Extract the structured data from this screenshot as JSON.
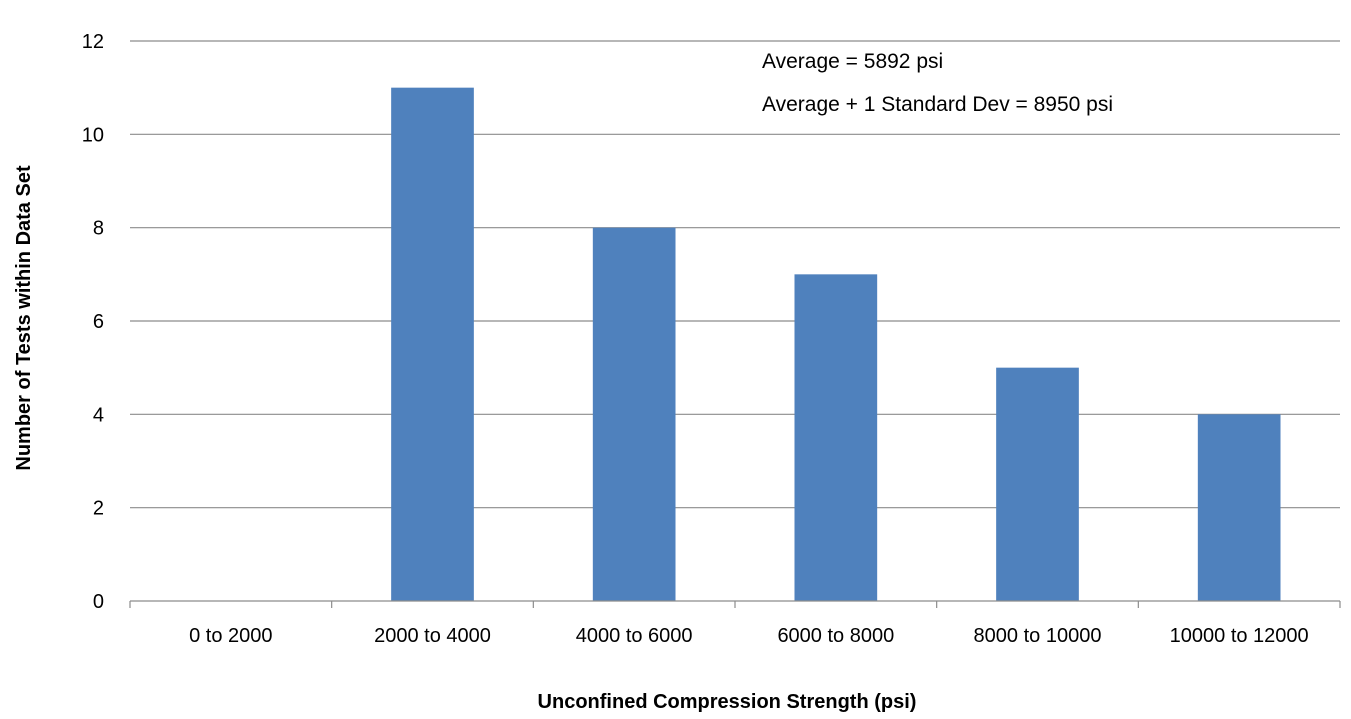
{
  "chart_data": {
    "type": "bar",
    "title": "",
    "xlabel": "Unconfined Compression Strength (psi)",
    "ylabel": "Number of Tests within Data Set",
    "categories": [
      "0 to 2000",
      "2000 to 4000",
      "4000 to 6000",
      "6000 to 8000",
      "8000 to 10000",
      "10000 to 12000"
    ],
    "values": [
      0,
      11,
      8,
      7,
      5,
      4
    ],
    "ylim": [
      0,
      12
    ],
    "yticks": [
      0,
      2,
      4,
      6,
      8,
      10,
      12
    ],
    "grid": true,
    "legend": "none",
    "bar_color": "#4f81bd",
    "annotations": [
      "Average = 5892 psi",
      "Average + 1 Standard Dev = 8950 psi"
    ]
  }
}
